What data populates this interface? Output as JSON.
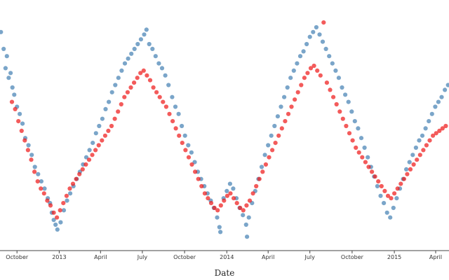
{
  "chart_data": {
    "type": "scatter",
    "title": "",
    "xlabel": "Date",
    "ylabel": "",
    "xlim": [
      "2012-08-25",
      "2015-04-30"
    ],
    "ylim": [
      0,
      100
    ],
    "grid": false,
    "x_ticks": [
      {
        "label": "October",
        "date": "2012-10-01"
      },
      {
        "label": "2013",
        "date": "2013-01-01"
      },
      {
        "label": "April",
        "date": "2013-04-01"
      },
      {
        "label": "July",
        "date": "2013-07-01"
      },
      {
        "label": "October",
        "date": "2013-10-01"
      },
      {
        "label": "2014",
        "date": "2014-01-01"
      },
      {
        "label": "April",
        "date": "2014-04-01"
      },
      {
        "label": "July",
        "date": "2014-07-01"
      },
      {
        "label": "October",
        "date": "2014-10-01"
      },
      {
        "label": "2015",
        "date": "2015-01-01"
      },
      {
        "label": "April",
        "date": "2015-04-01"
      }
    ],
    "series": [
      {
        "name": "blue",
        "color": "#4682b4",
        "points": [
          [
            "2012-08-27",
            89
          ],
          [
            "2012-09-02",
            82
          ],
          [
            "2012-09-06",
            74
          ],
          [
            "2012-09-09",
            79
          ],
          [
            "2012-09-13",
            70
          ],
          [
            "2012-09-17",
            72
          ],
          [
            "2012-09-21",
            66
          ],
          [
            "2012-09-25",
            63
          ],
          [
            "2012-10-01",
            58
          ],
          [
            "2012-10-07",
            55
          ],
          [
            "2012-10-13",
            51
          ],
          [
            "2012-10-19",
            45
          ],
          [
            "2012-10-26",
            42
          ],
          [
            "2012-11-02",
            38
          ],
          [
            "2012-11-09",
            33
          ],
          [
            "2012-11-16",
            30
          ],
          [
            "2012-11-23",
            27
          ],
          [
            "2012-11-30",
            24
          ],
          [
            "2012-12-07",
            20
          ],
          [
            "2012-12-12",
            18
          ],
          [
            "2012-12-16",
            14
          ],
          [
            "2012-12-20",
            11
          ],
          [
            "2012-12-24",
            9
          ],
          [
            "2012-12-28",
            7
          ],
          [
            "2013-01-04",
            10
          ],
          [
            "2013-01-11",
            15
          ],
          [
            "2013-01-18",
            19
          ],
          [
            "2013-01-25",
            22
          ],
          [
            "2013-02-01",
            25
          ],
          [
            "2013-02-08",
            28
          ],
          [
            "2013-02-15",
            31
          ],
          [
            "2013-02-22",
            34
          ],
          [
            "2013-03-01",
            37
          ],
          [
            "2013-03-08",
            40
          ],
          [
            "2013-03-15",
            43
          ],
          [
            "2013-03-22",
            47
          ],
          [
            "2013-03-29",
            50
          ],
          [
            "2013-04-05",
            53
          ],
          [
            "2013-04-12",
            57
          ],
          [
            "2013-04-19",
            60
          ],
          [
            "2013-04-26",
            64
          ],
          [
            "2013-05-03",
            67
          ],
          [
            "2013-05-10",
            70
          ],
          [
            "2013-05-17",
            73
          ],
          [
            "2013-05-24",
            76
          ],
          [
            "2013-05-31",
            78
          ],
          [
            "2013-06-07",
            80
          ],
          [
            "2013-06-14",
            82
          ],
          [
            "2013-06-21",
            84
          ],
          [
            "2013-06-28",
            86
          ],
          [
            "2013-07-05",
            88
          ],
          [
            "2013-07-10",
            90
          ],
          [
            "2013-07-16",
            84
          ],
          [
            "2013-07-23",
            82
          ],
          [
            "2013-07-30",
            79
          ],
          [
            "2013-08-06",
            76
          ],
          [
            "2013-08-13",
            74
          ],
          [
            "2013-08-20",
            71
          ],
          [
            "2013-08-27",
            67
          ],
          [
            "2013-09-04",
            62
          ],
          [
            "2013-09-11",
            58
          ],
          [
            "2013-09-18",
            55
          ],
          [
            "2013-09-25",
            50
          ],
          [
            "2013-10-02",
            46
          ],
          [
            "2013-10-09",
            42
          ],
          [
            "2013-10-16",
            39
          ],
          [
            "2013-10-23",
            35
          ],
          [
            "2013-10-30",
            31
          ],
          [
            "2013-11-06",
            28
          ],
          [
            "2013-11-13",
            25
          ],
          [
            "2013-11-20",
            22
          ],
          [
            "2013-11-27",
            19
          ],
          [
            "2013-12-04",
            16
          ],
          [
            "2013-12-11",
            12
          ],
          [
            "2013-12-16",
            8
          ],
          [
            "2013-12-18",
            6
          ],
          [
            "2013-12-25",
            20
          ],
          [
            "2014-01-01",
            23
          ],
          [
            "2014-01-08",
            26
          ],
          [
            "2014-01-15",
            24
          ],
          [
            "2014-01-22",
            20
          ],
          [
            "2014-01-29",
            16
          ],
          [
            "2014-02-05",
            13
          ],
          [
            "2014-02-12",
            9
          ],
          [
            "2014-02-14",
            4
          ],
          [
            "2014-02-18",
            12
          ],
          [
            "2014-02-25",
            18
          ],
          [
            "2014-03-04",
            23
          ],
          [
            "2014-03-11",
            28
          ],
          [
            "2014-03-18",
            33
          ],
          [
            "2014-03-25",
            38
          ],
          [
            "2014-04-01",
            42
          ],
          [
            "2014-04-08",
            46
          ],
          [
            "2014-04-15",
            50
          ],
          [
            "2014-04-22",
            54
          ],
          [
            "2014-04-29",
            58
          ],
          [
            "2014-05-06",
            62
          ],
          [
            "2014-05-13",
            66
          ],
          [
            "2014-05-20",
            70
          ],
          [
            "2014-05-27",
            73
          ],
          [
            "2014-06-03",
            76
          ],
          [
            "2014-06-10",
            79
          ],
          [
            "2014-06-17",
            81
          ],
          [
            "2014-06-24",
            84
          ],
          [
            "2014-07-01",
            87
          ],
          [
            "2014-07-08",
            89
          ],
          [
            "2014-07-15",
            91
          ],
          [
            "2014-07-22",
            88
          ],
          [
            "2014-07-29",
            85
          ],
          [
            "2014-08-05",
            82
          ],
          [
            "2014-08-12",
            79
          ],
          [
            "2014-08-19",
            76
          ],
          [
            "2014-08-26",
            73
          ],
          [
            "2014-09-02",
            70
          ],
          [
            "2014-09-09",
            66
          ],
          [
            "2014-09-16",
            63
          ],
          [
            "2014-09-23",
            60
          ],
          [
            "2014-09-30",
            56
          ],
          [
            "2014-10-07",
            52
          ],
          [
            "2014-10-14",
            49
          ],
          [
            "2014-10-21",
            45
          ],
          [
            "2014-10-28",
            41
          ],
          [
            "2014-11-04",
            37
          ],
          [
            "2014-11-11",
            33
          ],
          [
            "2014-11-18",
            29
          ],
          [
            "2014-11-25",
            25
          ],
          [
            "2014-12-02",
            21
          ],
          [
            "2014-12-09",
            18
          ],
          [
            "2014-12-16",
            14
          ],
          [
            "2014-12-23",
            12
          ],
          [
            "2014-12-30",
            16
          ],
          [
            "2015-01-06",
            20
          ],
          [
            "2015-01-13",
            24
          ],
          [
            "2015-01-20",
            28
          ],
          [
            "2015-01-27",
            32
          ],
          [
            "2015-02-03",
            35
          ],
          [
            "2015-02-10",
            38
          ],
          [
            "2015-02-17",
            41
          ],
          [
            "2015-02-24",
            44
          ],
          [
            "2015-03-03",
            46
          ],
          [
            "2015-03-10",
            49
          ],
          [
            "2015-03-17",
            52
          ],
          [
            "2015-03-24",
            55
          ],
          [
            "2015-03-31",
            58
          ],
          [
            "2015-04-07",
            60
          ],
          [
            "2015-04-14",
            62
          ],
          [
            "2015-04-21",
            65
          ],
          [
            "2015-04-28",
            67
          ]
        ]
      },
      {
        "name": "red",
        "color": "#ee1c1c",
        "points": [
          [
            "2012-09-20",
            60
          ],
          [
            "2012-09-27",
            57
          ],
          [
            "2012-10-04",
            52
          ],
          [
            "2012-10-11",
            48
          ],
          [
            "2012-10-18",
            44
          ],
          [
            "2012-10-25",
            40
          ],
          [
            "2012-11-01",
            36
          ],
          [
            "2012-11-08",
            31
          ],
          [
            "2012-11-15",
            27
          ],
          [
            "2012-11-22",
            24
          ],
          [
            "2012-11-29",
            22
          ],
          [
            "2012-12-06",
            19
          ],
          [
            "2012-12-13",
            17
          ],
          [
            "2012-12-20",
            14
          ],
          [
            "2012-12-27",
            12
          ],
          [
            "2013-01-03",
            15
          ],
          [
            "2013-01-10",
            18
          ],
          [
            "2013-01-17",
            21
          ],
          [
            "2013-01-24",
            24
          ],
          [
            "2013-01-31",
            26
          ],
          [
            "2013-02-07",
            28
          ],
          [
            "2013-02-14",
            30
          ],
          [
            "2013-02-21",
            32
          ],
          [
            "2013-02-28",
            34
          ],
          [
            "2013-03-07",
            36
          ],
          [
            "2013-03-14",
            38
          ],
          [
            "2013-03-21",
            40
          ],
          [
            "2013-03-28",
            42
          ],
          [
            "2013-04-04",
            44
          ],
          [
            "2013-04-11",
            46
          ],
          [
            "2013-04-18",
            48
          ],
          [
            "2013-04-25",
            50
          ],
          [
            "2013-05-02",
            53
          ],
          [
            "2013-05-09",
            56
          ],
          [
            "2013-05-16",
            59
          ],
          [
            "2013-05-23",
            62
          ],
          [
            "2013-05-30",
            64
          ],
          [
            "2013-06-06",
            66
          ],
          [
            "2013-06-13",
            68
          ],
          [
            "2013-06-20",
            70
          ],
          [
            "2013-06-27",
            72
          ],
          [
            "2013-07-04",
            73
          ],
          [
            "2013-07-11",
            71
          ],
          [
            "2013-07-18",
            69
          ],
          [
            "2013-07-25",
            66
          ],
          [
            "2013-08-01",
            64
          ],
          [
            "2013-08-08",
            62
          ],
          [
            "2013-08-15",
            60
          ],
          [
            "2013-08-22",
            58
          ],
          [
            "2013-08-29",
            55
          ],
          [
            "2013-09-05",
            52
          ],
          [
            "2013-09-12",
            49
          ],
          [
            "2013-09-19",
            46
          ],
          [
            "2013-09-26",
            43
          ],
          [
            "2013-10-03",
            40
          ],
          [
            "2013-10-10",
            37
          ],
          [
            "2013-10-17",
            34
          ],
          [
            "2013-10-24",
            31
          ],
          [
            "2013-10-31",
            28
          ],
          [
            "2013-11-07",
            25
          ],
          [
            "2013-11-14",
            22
          ],
          [
            "2013-11-21",
            20
          ],
          [
            "2013-11-28",
            18
          ],
          [
            "2013-12-05",
            16
          ],
          [
            "2013-12-12",
            15
          ],
          [
            "2013-12-19",
            17
          ],
          [
            "2013-12-26",
            19
          ],
          [
            "2014-01-02",
            21
          ],
          [
            "2014-01-09",
            22
          ],
          [
            "2014-01-16",
            20
          ],
          [
            "2014-01-23",
            18
          ],
          [
            "2014-01-30",
            16
          ],
          [
            "2014-02-06",
            15
          ],
          [
            "2014-02-13",
            17
          ],
          [
            "2014-02-20",
            19
          ],
          [
            "2014-02-27",
            22
          ],
          [
            "2014-03-06",
            25
          ],
          [
            "2014-03-13",
            28
          ],
          [
            "2014-03-20",
            31
          ],
          [
            "2014-03-27",
            34
          ],
          [
            "2014-04-03",
            37
          ],
          [
            "2014-04-10",
            40
          ],
          [
            "2014-04-17",
            43
          ],
          [
            "2014-04-24",
            46
          ],
          [
            "2014-05-01",
            49
          ],
          [
            "2014-05-08",
            52
          ],
          [
            "2014-05-15",
            55
          ],
          [
            "2014-05-22",
            58
          ],
          [
            "2014-05-29",
            61
          ],
          [
            "2014-06-05",
            64
          ],
          [
            "2014-06-12",
            67
          ],
          [
            "2014-06-19",
            70
          ],
          [
            "2014-06-26",
            72
          ],
          [
            "2014-07-03",
            74
          ],
          [
            "2014-07-10",
            75
          ],
          [
            "2014-07-17",
            73
          ],
          [
            "2014-07-24",
            71
          ],
          [
            "2014-07-31",
            93
          ],
          [
            "2014-08-07",
            68
          ],
          [
            "2014-08-14",
            65
          ],
          [
            "2014-08-21",
            62
          ],
          [
            "2014-08-28",
            59
          ],
          [
            "2014-09-04",
            56
          ],
          [
            "2014-09-11",
            53
          ],
          [
            "2014-09-18",
            50
          ],
          [
            "2014-09-25",
            47
          ],
          [
            "2014-10-02",
            44
          ],
          [
            "2014-10-09",
            41
          ],
          [
            "2014-10-16",
            39
          ],
          [
            "2014-10-23",
            37
          ],
          [
            "2014-10-30",
            35
          ],
          [
            "2014-11-06",
            33
          ],
          [
            "2014-11-13",
            31
          ],
          [
            "2014-11-20",
            29
          ],
          [
            "2014-11-27",
            27
          ],
          [
            "2014-12-04",
            25
          ],
          [
            "2014-12-11",
            23
          ],
          [
            "2014-12-18",
            21
          ],
          [
            "2014-12-25",
            20
          ],
          [
            "2015-01-01",
            22
          ],
          [
            "2015-01-08",
            24
          ],
          [
            "2015-01-15",
            26
          ],
          [
            "2015-01-22",
            28
          ],
          [
            "2015-01-29",
            30
          ],
          [
            "2015-02-05",
            32
          ],
          [
            "2015-02-12",
            34
          ],
          [
            "2015-02-19",
            36
          ],
          [
            "2015-02-26",
            38
          ],
          [
            "2015-03-05",
            40
          ],
          [
            "2015-03-12",
            42
          ],
          [
            "2015-03-19",
            44
          ],
          [
            "2015-03-26",
            46
          ],
          [
            "2015-04-02",
            47
          ],
          [
            "2015-04-09",
            48
          ],
          [
            "2015-04-16",
            49
          ],
          [
            "2015-04-23",
            50
          ]
        ]
      }
    ]
  }
}
